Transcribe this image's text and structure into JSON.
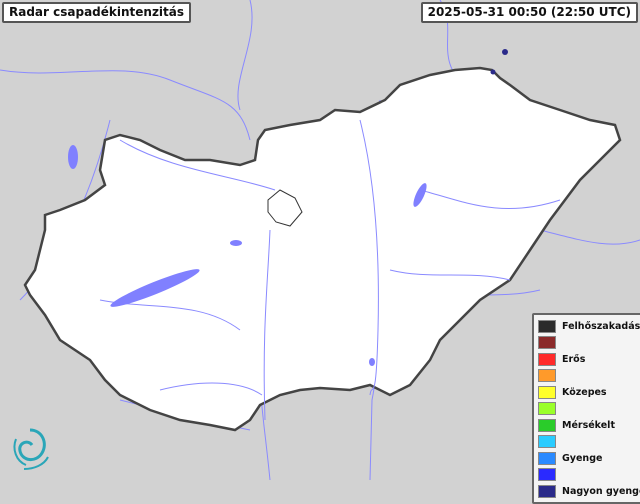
{
  "header": {
    "title": "Radar csapadékintenzitás",
    "timestamp": "2025-05-31 00:50 (22:50 UTC)"
  },
  "map": {
    "region": "Hungary",
    "background_color": "#d2d2d2",
    "country_fill": "#ffffff",
    "border_color": "#444444",
    "water_color": "#8080ff"
  },
  "legend": {
    "items": [
      {
        "label": "Felhőszakadás",
        "color": "#2b2b2b"
      },
      {
        "label": "",
        "color": "#8b2a2a"
      },
      {
        "label": "Erős",
        "color": "#ff2a2a"
      },
      {
        "label": "",
        "color": "#ff9a2a"
      },
      {
        "label": "Közepes",
        "color": "#ffff2a"
      },
      {
        "label": "",
        "color": "#9aff2a"
      },
      {
        "label": "Mérsékelt",
        "color": "#2acc2a"
      },
      {
        "label": "",
        "color": "#2accff"
      },
      {
        "label": "Gyenge",
        "color": "#2a8aff"
      },
      {
        "label": "",
        "color": "#2a2aff"
      },
      {
        "label": "Nagyon gyenge",
        "color": "#2a2a8a"
      }
    ]
  },
  "logo_icon": "swirl-logo-icon"
}
